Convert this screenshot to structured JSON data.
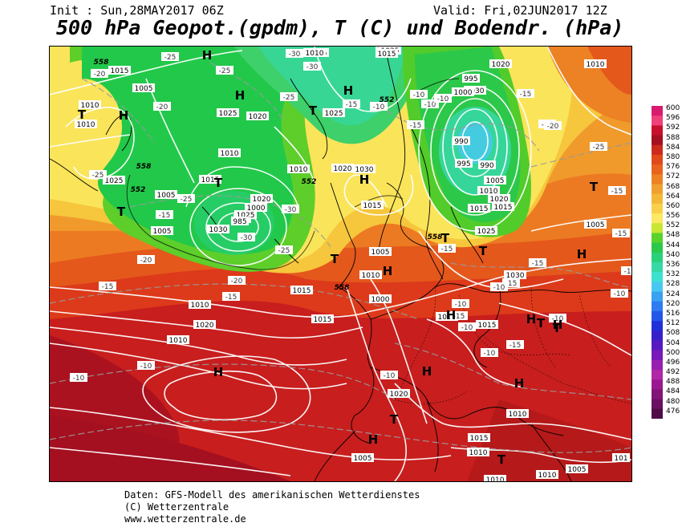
{
  "header": {
    "init": "Init : Sun,28MAY2017 06Z",
    "valid": "Valid: Fri,02JUN2017 12Z",
    "title": "500 hPa Geopot.(gpdm), T (C) und Bodendr. (hPa)"
  },
  "footer": {
    "line1": "Daten: GFS-Modell des amerikanischen Wetterdienstes",
    "line2": "(C) Wetterzentrale",
    "line3": "www.wetterzentrale.de"
  },
  "colorbar": {
    "labels": [
      "600",
      "596",
      "592",
      "588",
      "584",
      "580",
      "576",
      "572",
      "568",
      "564",
      "560",
      "556",
      "552",
      "548",
      "544",
      "540",
      "536",
      "532",
      "528",
      "524",
      "520",
      "516",
      "512",
      "508",
      "504",
      "500",
      "496",
      "492",
      "488",
      "484",
      "480",
      "476"
    ],
    "colors": [
      "#d81b6e",
      "#f0407a",
      "#c8102e",
      "#a41020",
      "#cc2a1a",
      "#e04a1a",
      "#e8641c",
      "#ec8224",
      "#f0a030",
      "#f4b838",
      "#f8d04a",
      "#fce862",
      "#c8e632",
      "#5ad22c",
      "#2cc84a",
      "#2ad07a",
      "#36d8a8",
      "#3ee0d0",
      "#48c8f0",
      "#3aa0f0",
      "#2e7cf0",
      "#2456e8",
      "#2030d8",
      "#3820c8",
      "#5818c0",
      "#7818b8",
      "#9820b0",
      "#b028a8",
      "#9a1890",
      "#821478",
      "#6a1060",
      "#500a48"
    ]
  },
  "pressure_labels": [
    "1015",
    "1010",
    "1005",
    "1010",
    "1025",
    "1020",
    "1015",
    "1010",
    "1005",
    "1000",
    "995",
    "1025",
    "1030",
    "1020",
    "1015",
    "1010",
    "1025",
    "1020",
    "1030",
    "1000",
    "995",
    "990",
    "1005",
    "1010",
    "1015",
    "1020",
    "1025",
    "1030",
    "1015",
    "1010",
    "1005",
    "1010",
    "1015",
    "1020",
    "1025",
    "1030",
    "1025",
    "1015",
    "1010",
    "1020",
    "1015",
    "1010",
    "1005",
    "1000",
    "1010",
    "1015",
    "1020",
    "1010",
    "1015",
    "1010",
    "1005",
    "1010",
    "1010",
    "1005",
    "1010",
    "1015",
    "1010",
    "1005",
    "101"
  ],
  "temp_labels": [
    "-25",
    "-20",
    "-25",
    "-30",
    "-30",
    "-25",
    "-25",
    "-30",
    "-25",
    "-20",
    "-30",
    "-25",
    "-15",
    "-15",
    "-20",
    "-15",
    "-20",
    "-15",
    "-10",
    "-15",
    "-10",
    "-10",
    "-10",
    "-15",
    "-10",
    "-20",
    "-25",
    "-15",
    "-15",
    "-15",
    "-15",
    "-10",
    "-15",
    "-15",
    "-10",
    "-10",
    "-10",
    "-10",
    "-15",
    "-10",
    "-15",
    "-10",
    "-10",
    "-10"
  ],
  "height_labels": [
    "558",
    "558",
    "552",
    "552",
    "558",
    "558",
    "552"
  ],
  "pressure_centers": {
    "highs": [
      "H",
      "H",
      "H",
      "H",
      "H",
      "H",
      "H",
      "H",
      "H",
      "H",
      "H",
      "H",
      "H",
      "H"
    ],
    "lows": [
      "T",
      "T",
      "T",
      "T",
      "T",
      "T",
      "T",
      "T",
      "T",
      "T",
      "T",
      "T",
      "T"
    ]
  },
  "low_center_values": [
    "985",
    "990",
    "995"
  ]
}
